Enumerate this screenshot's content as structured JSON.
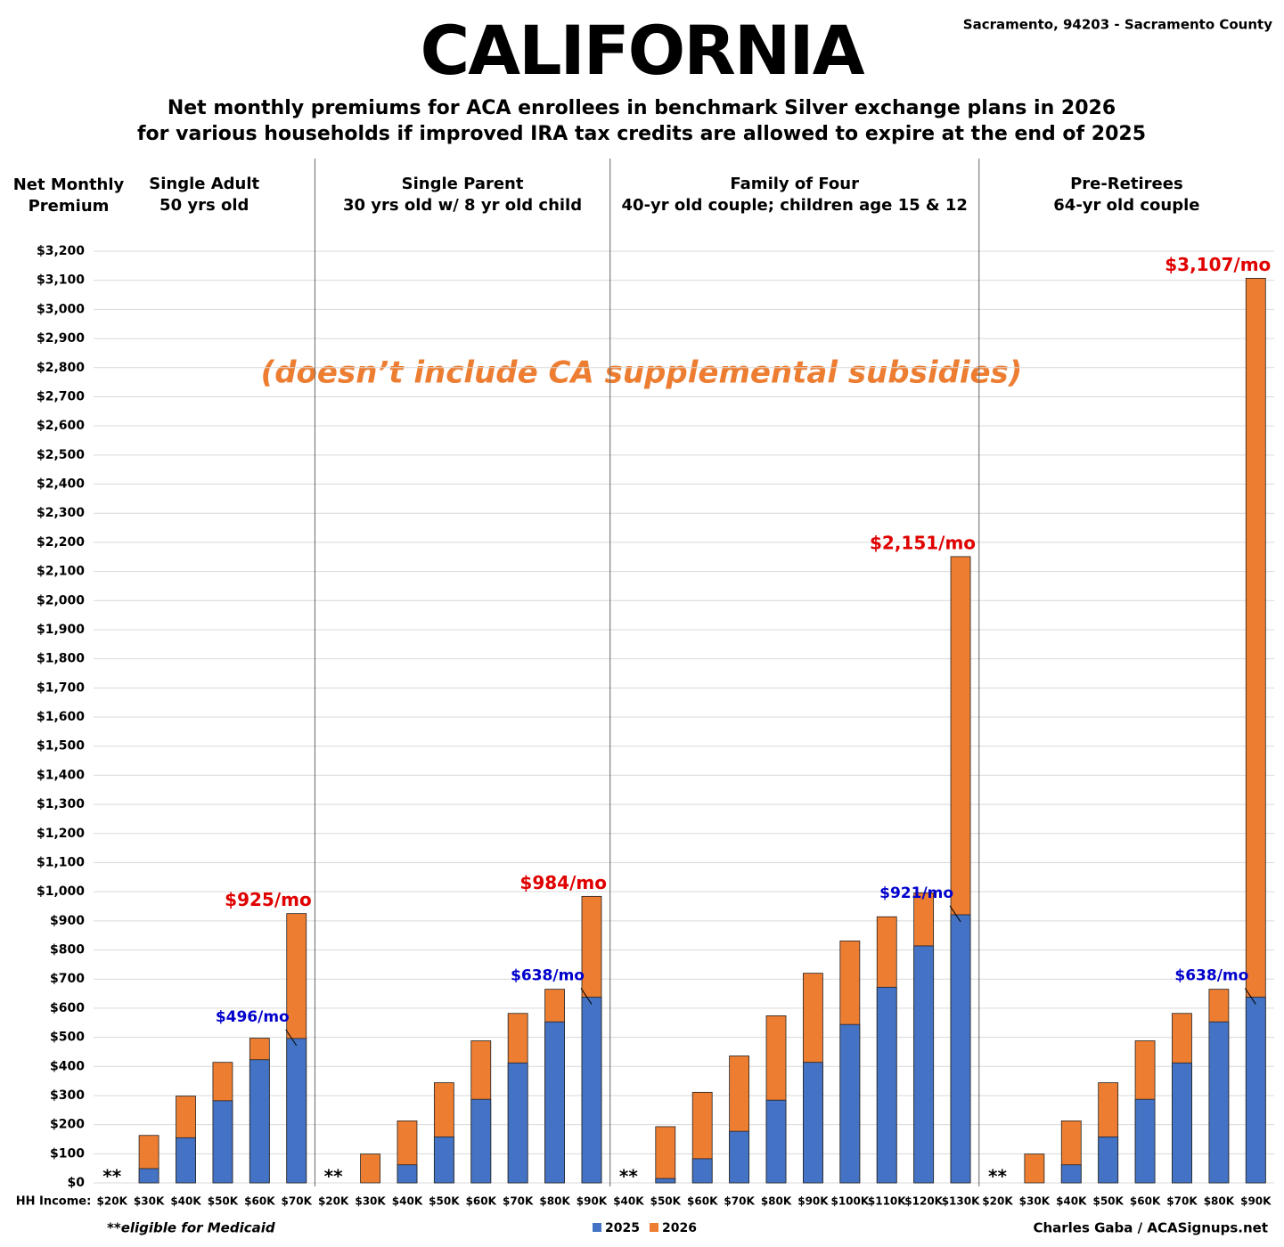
{
  "header": {
    "title": "CALIFORNIA",
    "location": "Sacramento, 94203 - Sacramento County",
    "subtitle": [
      "Net monthly premiums for ACA enrollees in benchmark Silver exchange plans in 2026",
      "for various households if improved IRA tax credits are allowed to expire at the end of 2025"
    ]
  },
  "y_axis": {
    "title": [
      "Net Monthly",
      "Premium"
    ],
    "ylim": [
      0,
      3200
    ],
    "yticks": [
      {
        "value": 0,
        "label": "$0"
      },
      {
        "value": 100,
        "label": "$100"
      },
      {
        "value": 200,
        "label": "$200"
      },
      {
        "value": 300,
        "label": "$300"
      },
      {
        "value": 400,
        "label": "$400"
      },
      {
        "value": 500,
        "label": "$500"
      },
      {
        "value": 600,
        "label": "$600"
      },
      {
        "value": 700,
        "label": "$700"
      },
      {
        "value": 800,
        "label": "$800"
      },
      {
        "value": 900,
        "label": "$900"
      },
      {
        "value": 1000,
        "label": "$1,000"
      },
      {
        "value": 1100,
        "label": "$1,100"
      },
      {
        "value": 1200,
        "label": "$1,200"
      },
      {
        "value": 1300,
        "label": "$1,300"
      },
      {
        "value": 1400,
        "label": "$1,400"
      },
      {
        "value": 1500,
        "label": "$1,500"
      },
      {
        "value": 1600,
        "label": "$1,600"
      },
      {
        "value": 1700,
        "label": "$1,700"
      },
      {
        "value": 1800,
        "label": "$1,800"
      },
      {
        "value": 1900,
        "label": "$1,900"
      },
      {
        "value": 2000,
        "label": "$2,000"
      },
      {
        "value": 2100,
        "label": "$2,100"
      },
      {
        "value": 2200,
        "label": "$2,200"
      },
      {
        "value": 2300,
        "label": "$2,300"
      },
      {
        "value": 2400,
        "label": "$2,400"
      },
      {
        "value": 2500,
        "label": "$2,500"
      },
      {
        "value": 2600,
        "label": "$2,600"
      },
      {
        "value": 2700,
        "label": "$2,700"
      },
      {
        "value": 2800,
        "label": "$2,800"
      },
      {
        "value": 2900,
        "label": "$2,900"
      },
      {
        "value": 3000,
        "label": "$3,000"
      },
      {
        "value": 3100,
        "label": "$3,100"
      },
      {
        "value": 3200,
        "label": "$3,200"
      }
    ],
    "grid": true
  },
  "x_axis_label": "HH Income:",
  "note": "(doesn’t include CA supplemental subsidies)",
  "na_marker": "**",
  "footnote": "**eligible for Medicaid",
  "credit": "Charles Gaba / ACASignups.net",
  "chart_data": [
    {
      "type": "bar",
      "title": "Single Adult",
      "subtitle": "50 yrs old",
      "categories": [
        "$20K",
        "$30K",
        "$40K",
        "$50K",
        "$60K",
        "$70K"
      ],
      "series": [
        {
          "name": "2026",
          "color": "#ed7d31",
          "values": [
            null,
            163,
            298,
            414,
            497,
            925
          ],
          "value_labels": [
            null,
            null,
            null,
            null,
            null,
            "$925/mo"
          ]
        },
        {
          "name": "2025",
          "color": "#4472c4",
          "values": [
            null,
            49,
            155,
            282,
            423,
            496
          ],
          "value_labels": [
            null,
            null,
            null,
            null,
            null,
            "$496/mo"
          ]
        }
      ]
    },
    {
      "type": "bar",
      "title": "Single Parent",
      "subtitle": "30 yrs old w/ 8 yr old child",
      "categories": [
        "$20K",
        "$30K",
        "$40K",
        "$50K",
        "$60K",
        "$70K",
        "$80K",
        "$90K"
      ],
      "series": [
        {
          "name": "2026",
          "color": "#ed7d31",
          "values": [
            null,
            99,
            213,
            344,
            488,
            582,
            665,
            984
          ],
          "value_labels": [
            null,
            null,
            null,
            null,
            null,
            null,
            null,
            "$984/mo"
          ]
        },
        {
          "name": "2025",
          "color": "#4472c4",
          "values": [
            null,
            0,
            62,
            158,
            287,
            412,
            553,
            638
          ],
          "value_labels": [
            null,
            null,
            null,
            null,
            null,
            null,
            null,
            "$638/mo"
          ]
        }
      ]
    },
    {
      "type": "bar",
      "title": "Family of Four",
      "subtitle": "40-yr old couple; children age 15 & 12",
      "categories": [
        "$40K",
        "$50K",
        "$60K",
        "$70K",
        "$80K",
        "$90K",
        "$100K",
        "$110K",
        "$120K",
        "$130K"
      ],
      "series": [
        {
          "name": "2026",
          "color": "#ed7d31",
          "values": [
            null,
            193,
            311,
            436,
            574,
            720,
            831,
            914,
            996,
            2151
          ],
          "value_labels": [
            null,
            null,
            null,
            null,
            null,
            null,
            null,
            null,
            null,
            "$2,151/mo"
          ]
        },
        {
          "name": "2025",
          "color": "#4472c4",
          "values": [
            null,
            15,
            83,
            177,
            284,
            414,
            544,
            672,
            814,
            921
          ],
          "value_labels": [
            null,
            null,
            null,
            null,
            null,
            null,
            null,
            null,
            null,
            "$921/mo"
          ]
        }
      ]
    },
    {
      "type": "bar",
      "title": "Pre-Retirees",
      "subtitle": "64-yr old couple",
      "categories": [
        "$20K",
        "$30K",
        "$40K",
        "$50K",
        "$60K",
        "$70K",
        "$80K",
        "$90K"
      ],
      "series": [
        {
          "name": "2026",
          "color": "#ed7d31",
          "values": [
            null,
            99,
            213,
            344,
            488,
            582,
            665,
            3107
          ],
          "value_labels": [
            null,
            null,
            null,
            null,
            null,
            null,
            null,
            "$3,107/mo"
          ]
        },
        {
          "name": "2025",
          "color": "#4472c4",
          "values": [
            null,
            0,
            62,
            158,
            287,
            412,
            553,
            638
          ],
          "value_labels": [
            null,
            null,
            null,
            null,
            null,
            null,
            null,
            "$638/mo"
          ]
        }
      ]
    }
  ]
}
